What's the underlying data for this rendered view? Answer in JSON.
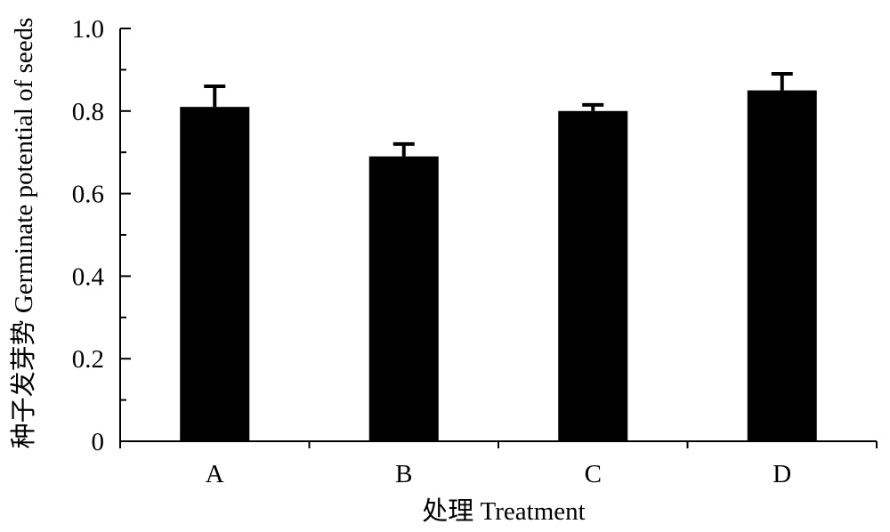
{
  "chart_data": {
    "type": "bar",
    "categories": [
      "A",
      "B",
      "C",
      "D"
    ],
    "values": [
      0.81,
      0.69,
      0.8,
      0.85
    ],
    "error": [
      0.05,
      0.03,
      0.015,
      0.04
    ],
    "xlabel": "处理 Treatment",
    "ylabel": "种子发芽势  Germinate potential of seeds",
    "ylim": [
      0,
      1.0
    ],
    "yticks": [
      0,
      0.2,
      0.4,
      0.6,
      0.8,
      1.0
    ],
    "ytick_labels": [
      "0",
      "0.2",
      "0.4",
      "0.6",
      "0.8",
      "1.0"
    ],
    "grid": false,
    "legend": "none",
    "bar_color": "#000000"
  }
}
